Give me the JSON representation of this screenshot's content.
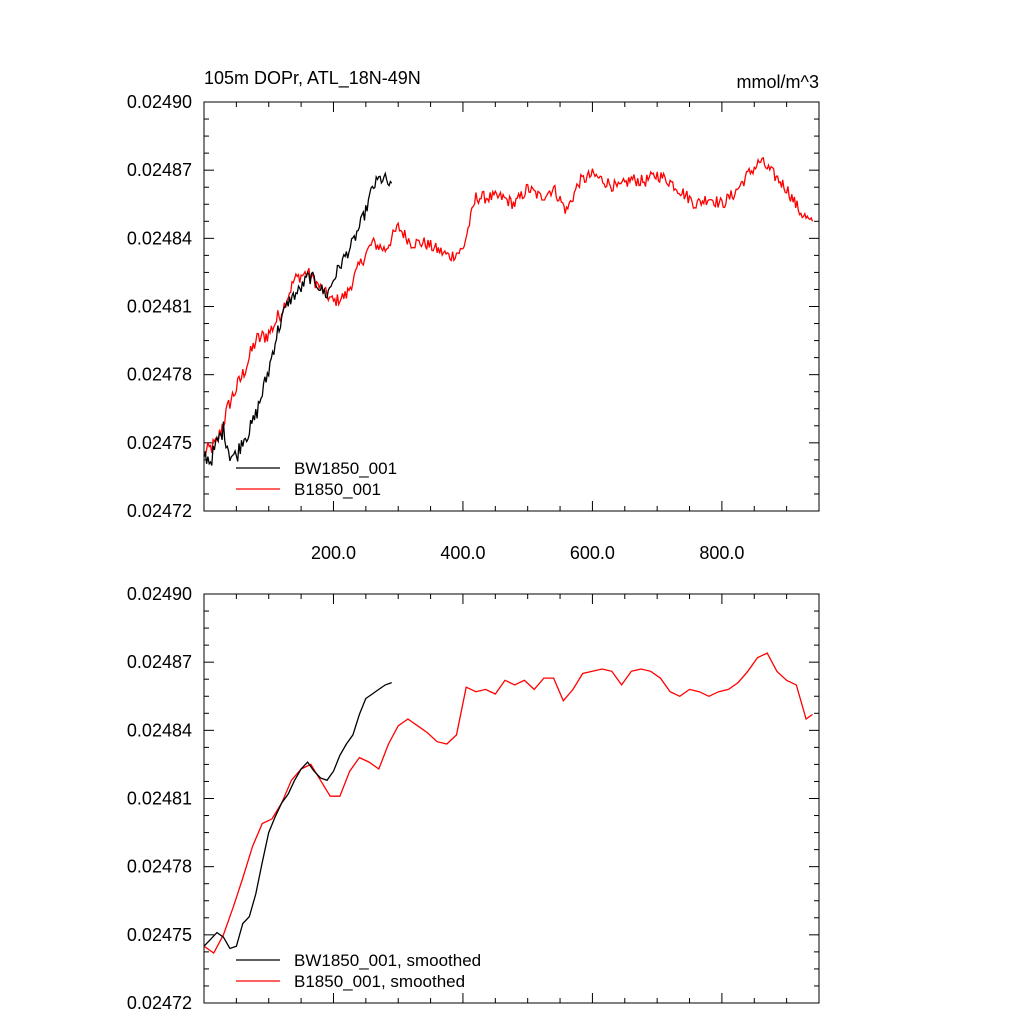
{
  "chart_data": [
    {
      "type": "line",
      "title_left": "105m DOPr, ATL_18N-49N",
      "title_right": "mmol/m^3",
      "xlabel": "",
      "ylabel": "",
      "xlim": [
        0,
        950
      ],
      "ylim": [
        0.02472,
        0.0249
      ],
      "xticks": [
        200,
        400,
        600,
        800
      ],
      "xtick_labels": [
        "200.0",
        "400.0",
        "600.0",
        "800.0"
      ],
      "yticks": [
        0.02472,
        0.02475,
        0.02478,
        0.02481,
        0.02484,
        0.02487,
        0.0249
      ],
      "ytick_labels": [
        "0.02472",
        "0.02475",
        "0.02478",
        "0.02481",
        "0.02484",
        "0.02487",
        "0.02490"
      ],
      "grid": false,
      "legend_position": "bottom-left",
      "legend": [
        "BW1850_001",
        "B1850_001"
      ],
      "series": [
        {
          "name": "BW1850_001",
          "color": "#000000",
          "x": [
            0,
            10,
            20,
            30,
            40,
            50,
            60,
            70,
            80,
            90,
            100,
            110,
            120,
            130,
            140,
            150,
            160,
            170,
            180,
            190,
            200,
            210,
            220,
            230,
            240,
            250,
            260,
            270,
            280,
            290
          ],
          "y": [
            0.024745,
            0.024742,
            0.02475,
            0.024756,
            0.024745,
            0.024744,
            0.024752,
            0.024755,
            0.024762,
            0.024772,
            0.024782,
            0.024795,
            0.024805,
            0.024812,
            0.024815,
            0.024818,
            0.024823,
            0.024822,
            0.024818,
            0.024815,
            0.024822,
            0.024828,
            0.024833,
            0.024838,
            0.024845,
            0.024852,
            0.024862,
            0.024866,
            0.024866,
            0.024862
          ]
        },
        {
          "name": "B1850_001",
          "color": "#ff0000",
          "x": [
            0,
            20,
            40,
            60,
            80,
            100,
            120,
            140,
            160,
            180,
            200,
            220,
            240,
            260,
            280,
            300,
            320,
            340,
            360,
            380,
            400,
            420,
            440,
            460,
            480,
            500,
            520,
            540,
            560,
            580,
            600,
            620,
            640,
            660,
            680,
            700,
            720,
            740,
            760,
            780,
            800,
            820,
            840,
            860,
            880,
            900,
            920,
            940
          ],
          "y": [
            0.024745,
            0.02475,
            0.024768,
            0.02478,
            0.024795,
            0.024798,
            0.024808,
            0.024822,
            0.024825,
            0.024818,
            0.024812,
            0.024815,
            0.024828,
            0.024838,
            0.024835,
            0.024845,
            0.024838,
            0.024838,
            0.024835,
            0.024832,
            0.024835,
            0.024858,
            0.024858,
            0.024858,
            0.024855,
            0.024862,
            0.024858,
            0.024862,
            0.024852,
            0.024865,
            0.024868,
            0.024865,
            0.024862,
            0.024866,
            0.024865,
            0.024868,
            0.024865,
            0.02486,
            0.024855,
            0.024858,
            0.024855,
            0.02486,
            0.024868,
            0.024874,
            0.024868,
            0.024862,
            0.024852,
            0.024846
          ]
        }
      ]
    },
    {
      "type": "line",
      "title_left": "",
      "title_right": "",
      "xlabel": "",
      "ylabel": "",
      "xlim": [
        0,
        950
      ],
      "ylim": [
        0.02472,
        0.0249
      ],
      "xticks": [
        200,
        400,
        600,
        800
      ],
      "xtick_labels": [],
      "yticks": [
        0.02472,
        0.02475,
        0.02478,
        0.02481,
        0.02484,
        0.02487,
        0.0249
      ],
      "ytick_labels": [
        "0.02472",
        "0.02475",
        "0.02478",
        "0.02481",
        "0.02484",
        "0.02487",
        "0.02490"
      ],
      "grid": false,
      "legend_position": "bottom-left",
      "legend": [
        "BW1850_001, smoothed",
        "B1850_001, smoothed"
      ],
      "series": [
        {
          "name": "BW1850_001, smoothed",
          "color": "#000000",
          "x": [
            0,
            10,
            20,
            30,
            40,
            50,
            60,
            70,
            80,
            90,
            100,
            110,
            120,
            130,
            140,
            150,
            160,
            170,
            180,
            190,
            200,
            210,
            220,
            230,
            240,
            250,
            260,
            270,
            280,
            290
          ],
          "y": [
            0.024745,
            0.024748,
            0.024751,
            0.024749,
            0.024744,
            0.024745,
            0.024755,
            0.024758,
            0.024768,
            0.024782,
            0.024795,
            0.024802,
            0.024808,
            0.024812,
            0.024818,
            0.024823,
            0.024826,
            0.024822,
            0.024819,
            0.024818,
            0.024822,
            0.024829,
            0.024834,
            0.024838,
            0.024847,
            0.024854,
            0.024856,
            0.024858,
            0.02486,
            0.024861
          ]
        },
        {
          "name": "B1850_001, smoothed",
          "color": "#ff0000",
          "x": [
            0,
            15,
            30,
            45,
            60,
            75,
            90,
            105,
            120,
            135,
            150,
            165,
            180,
            195,
            210,
            225,
            240,
            255,
            270,
            285,
            300,
            315,
            330,
            345,
            360,
            375,
            390,
            405,
            420,
            435,
            450,
            465,
            480,
            495,
            510,
            525,
            540,
            555,
            570,
            585,
            600,
            615,
            630,
            645,
            660,
            675,
            690,
            705,
            720,
            735,
            750,
            765,
            780,
            795,
            810,
            825,
            840,
            855,
            870,
            885,
            900,
            915,
            930,
            940
          ],
          "y": [
            0.024745,
            0.024742,
            0.02475,
            0.024762,
            0.024775,
            0.024789,
            0.024799,
            0.024801,
            0.024808,
            0.024818,
            0.024823,
            0.024825,
            0.024818,
            0.024811,
            0.024811,
            0.024822,
            0.024828,
            0.024826,
            0.024823,
            0.024834,
            0.024842,
            0.024845,
            0.024842,
            0.024839,
            0.024835,
            0.024834,
            0.024838,
            0.024859,
            0.024857,
            0.024858,
            0.024856,
            0.024862,
            0.02486,
            0.024862,
            0.024858,
            0.024863,
            0.024863,
            0.024853,
            0.024858,
            0.024865,
            0.024866,
            0.024867,
            0.024866,
            0.02486,
            0.024866,
            0.024867,
            0.024866,
            0.024863,
            0.024857,
            0.024855,
            0.024858,
            0.024857,
            0.024855,
            0.024857,
            0.024858,
            0.024861,
            0.024866,
            0.024872,
            0.024874,
            0.024866,
            0.024862,
            0.02486,
            0.024845,
            0.024847
          ]
        }
      ]
    }
  ]
}
